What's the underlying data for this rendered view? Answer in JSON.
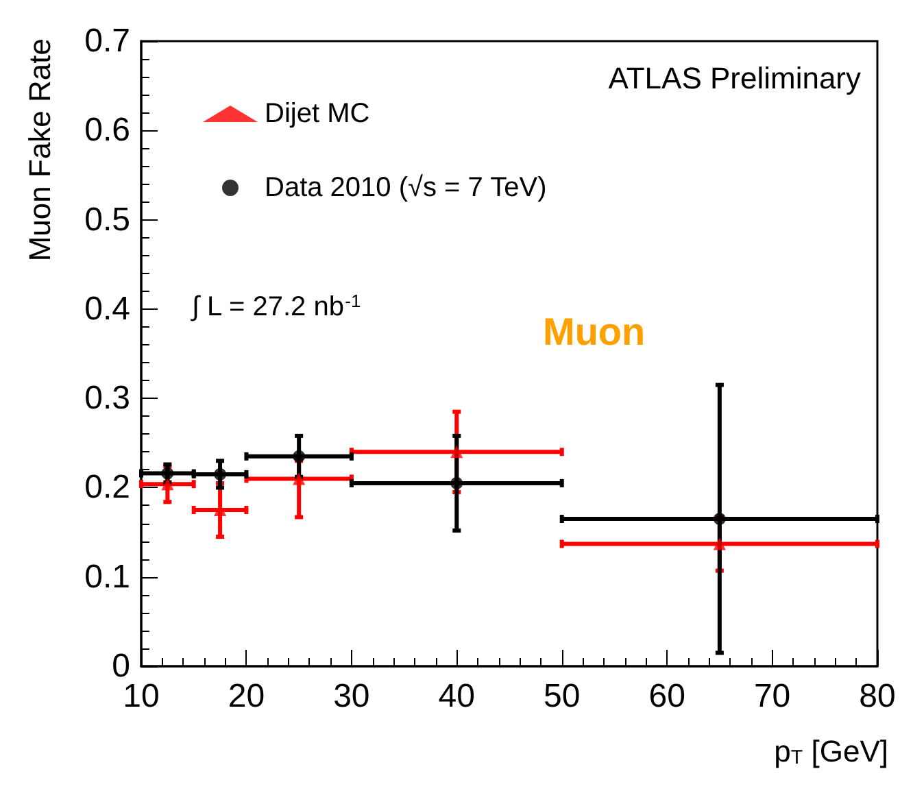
{
  "chart_data": {
    "type": "scatter",
    "xlabel": "p$_{T}$ [GeV]",
    "ylabel": "Muon Fake Rate",
    "xlim": [
      10,
      80
    ],
    "xticks": [
      10,
      20,
      30,
      40,
      50,
      60,
      70,
      80
    ],
    "ylim": [
      0,
      0.7
    ],
    "yticks": [
      0,
      0.1,
      0.2,
      0.3,
      0.4,
      0.5,
      0.6,
      0.7
    ],
    "legend": "top left",
    "grid": false,
    "annotations": [
      "ATLAS Preliminary",
      "∫ L = 27.2 nb$^{-1}$",
      "Muon"
    ],
    "series": [
      {
        "name": "Dijet MC",
        "color": "#ff0000",
        "marker": "triangle",
        "x": [
          12.5,
          17.5,
          25,
          40,
          65
        ],
        "values": [
          0.204,
          0.175,
          0.21,
          0.24,
          0.137
        ],
        "errors": [
          0.02,
          0.03,
          [
            0.167,
            0.23
          ],
          0.045,
          0.03
        ],
        "xerrors": [
          2.5,
          2.5,
          5,
          10,
          15
        ]
      },
      {
        "name": "Data 2010 (√s = 7 TeV)",
        "color": "#000000",
        "marker": "circle",
        "x": [
          12.5,
          17.5,
          25,
          40,
          65
        ],
        "values": [
          0.216,
          0.215,
          0.235,
          0.205,
          0.165
        ],
        "errors": [
          0.01,
          0.015,
          0.023,
          0.053,
          0.15
        ],
        "xerrors": [
          2.5,
          2.5,
          5,
          10,
          15
        ]
      }
    ]
  }
}
